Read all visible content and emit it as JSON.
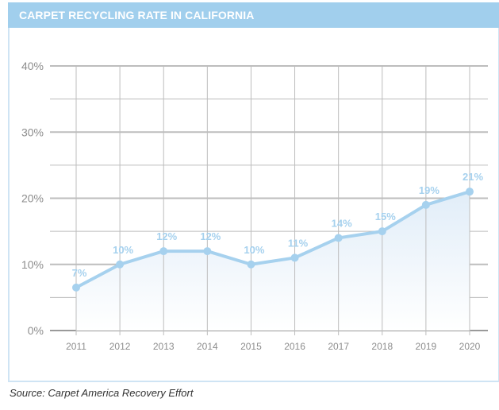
{
  "chart_data": {
    "type": "line",
    "title": "CARPET RECYCLING RATE IN CALIFORNIA",
    "xlabel": "",
    "ylabel": "",
    "categories": [
      "2011",
      "2012",
      "2013",
      "2014",
      "2015",
      "2016",
      "2017",
      "2018",
      "2019",
      "2020"
    ],
    "series": [
      {
        "name": "Carpet recycling rate",
        "values": [
          6.5,
          10,
          12,
          12,
          10,
          11,
          14,
          15,
          19,
          21
        ],
        "labels": [
          "7%",
          "10%",
          "12%",
          "12%",
          "10%",
          "11%",
          "14%",
          "15%",
          "19%",
          "21%"
        ]
      }
    ],
    "ylim": [
      0,
      40
    ],
    "yticks": [
      0,
      10,
      20,
      30,
      40
    ],
    "ytick_labels": [
      "0%",
      "10%",
      "20%",
      "30%",
      "40%"
    ],
    "minor_gridlines": [
      5,
      15,
      25,
      35
    ],
    "grid": true,
    "area_fill": true,
    "colors": {
      "line": "#a6d1ee",
      "marker": "#a6d1ee",
      "fill_top": "#e1edf8",
      "fill_bottom": "#ffffff",
      "header": "#a1cfed",
      "frame": "#cfe4f4",
      "grid": "#bdbdbd",
      "tick_text": "#8d8d8d"
    },
    "source": "Source: Carpet America Recovery Effort"
  }
}
